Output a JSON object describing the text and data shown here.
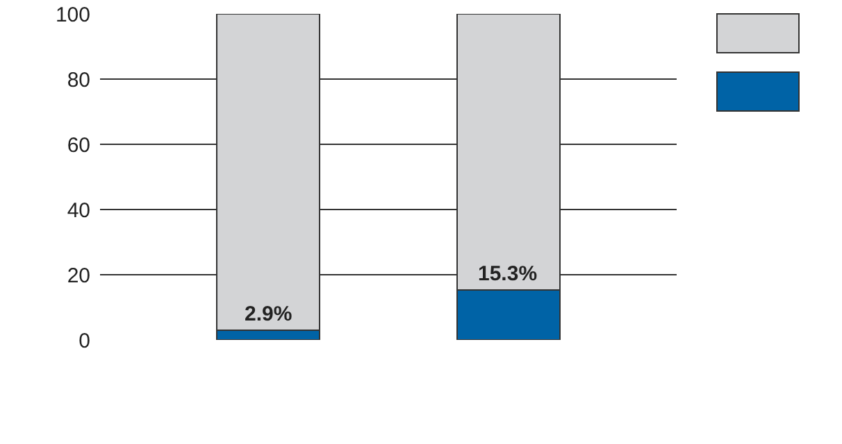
{
  "chart_data": {
    "type": "bar",
    "stacked": true,
    "categories": [
      null,
      null
    ],
    "series": [
      {
        "color": "#0063a6",
        "values": [
          2.9,
          15.3
        ],
        "value_labels": [
          "2.9%",
          "15.3%"
        ]
      },
      {
        "color": "#d3d4d6",
        "values": [
          97.1,
          84.7
        ]
      }
    ],
    "ylim": [
      0,
      100
    ],
    "yticks": [
      0,
      20,
      40,
      60,
      80,
      100
    ],
    "grid": "y"
  }
}
